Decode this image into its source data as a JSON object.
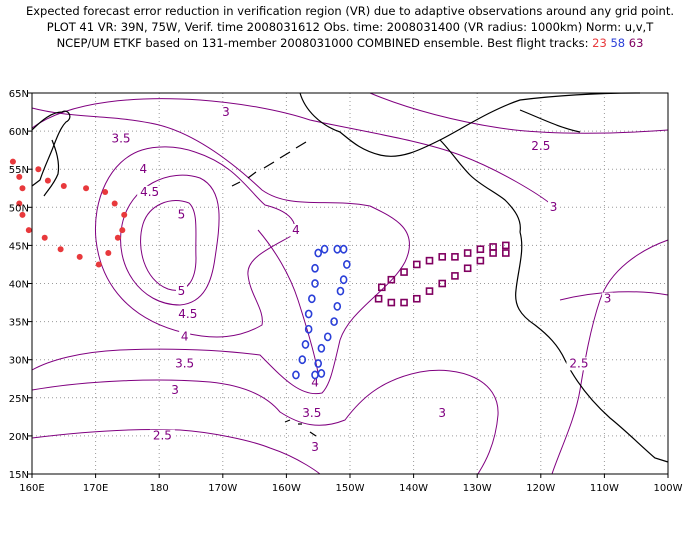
{
  "header": {
    "line1": "Expected forecast error reduction in verification region (VR) due to adaptive observations around any grid point.",
    "line2": "PLOT 41 VR: 39N, 75W, Verif. time 2008031612 Obs. time: 2008031400 (VR radius: 1000km) Norm: u,v,T",
    "line3_prefix": "NCEP/UM ETKF based on 131-member 2008031000 COMBINED ensemble.  Best flight tracks:",
    "track_a": "23",
    "track_b": "58",
    "track_c": "63"
  },
  "colors": {
    "contour": "#800080",
    "coast": "#000000",
    "grid": "#9a9a9a",
    "track_23": "#e8393c",
    "track_58": "#2a3fd8",
    "track_63": "#800060"
  },
  "chart_data": {
    "type": "map",
    "x_ticks": [
      "160E",
      "170E",
      "180",
      "170W",
      "160W",
      "150W",
      "140W",
      "130W",
      "120W",
      "110W",
      "100W"
    ],
    "y_ticks": [
      "15N",
      "20N",
      "25N",
      "30N",
      "35N",
      "40N",
      "45N",
      "50N",
      "55N",
      "60N",
      "65N"
    ],
    "lon_range": [
      160,
      260
    ],
    "lat_range": [
      15,
      65
    ],
    "contour_labels": [
      {
        "text": "3",
        "lon": 190.5,
        "lat": 62
      },
      {
        "text": "3.5",
        "lon": 174,
        "lat": 58.5
      },
      {
        "text": "2.5",
        "lon": 240,
        "lat": 57.5
      },
      {
        "text": "4",
        "lon": 177.5,
        "lat": 54.5
      },
      {
        "text": "4.5",
        "lon": 178.5,
        "lat": 51.5
      },
      {
        "text": "5",
        "lon": 183.5,
        "lat": 48.5
      },
      {
        "text": "3",
        "lon": 242,
        "lat": 49.5
      },
      {
        "text": "4",
        "lon": 201.5,
        "lat": 46.5
      },
      {
        "text": "5",
        "lon": 183.5,
        "lat": 38.5
      },
      {
        "text": "4.5",
        "lon": 184.5,
        "lat": 35.5
      },
      {
        "text": "3",
        "lon": 250.5,
        "lat": 37.5
      },
      {
        "text": "4",
        "lon": 184,
        "lat": 32.5
      },
      {
        "text": "3.5",
        "lon": 184,
        "lat": 29
      },
      {
        "text": "2.5",
        "lon": 246,
        "lat": 29
      },
      {
        "text": "4",
        "lon": 204.5,
        "lat": 26.5
      },
      {
        "text": "3",
        "lon": 182.5,
        "lat": 25.5
      },
      {
        "text": "3.5",
        "lon": 204,
        "lat": 22.5
      },
      {
        "text": "3",
        "lon": 224.5,
        "lat": 22.5
      },
      {
        "text": "2.5",
        "lon": 180.5,
        "lat": 19.5
      },
      {
        "text": "3",
        "lon": 204.5,
        "lat": 18
      }
    ],
    "tracks": [
      {
        "id": "23",
        "marker": "filled-circle",
        "points": [
          [
            171.5,
            52
          ],
          [
            173,
            50.5
          ],
          [
            174.5,
            49
          ],
          [
            173.5,
            46
          ],
          [
            174.2,
            47
          ],
          [
            172,
            44
          ],
          [
            170.5,
            42.5
          ],
          [
            167.5,
            43.5
          ],
          [
            164.5,
            44.5
          ],
          [
            162,
            46
          ],
          [
            159.5,
            47
          ],
          [
            158.5,
            49
          ],
          [
            158,
            50.5
          ],
          [
            158.5,
            52.5
          ],
          [
            158,
            54
          ],
          [
            157,
            56
          ],
          [
            168.5,
            52.5
          ],
          [
            165,
            52.8
          ],
          [
            162.5,
            53.5
          ],
          [
            161,
            55
          ]
        ]
      },
      {
        "id": "58",
        "marker": "open-circle",
        "points": [
          [
            201.5,
            28
          ],
          [
            202.5,
            30
          ],
          [
            203,
            32
          ],
          [
            203.5,
            34
          ],
          [
            203.5,
            36
          ],
          [
            204,
            38
          ],
          [
            204.5,
            40
          ],
          [
            204.5,
            42
          ],
          [
            205,
            44
          ],
          [
            206,
            44.5
          ],
          [
            208,
            44.5
          ],
          [
            209,
            44.5
          ],
          [
            209.5,
            42.5
          ],
          [
            209,
            40.5
          ],
          [
            208.5,
            39
          ],
          [
            208,
            37
          ],
          [
            207.5,
            35
          ],
          [
            206.5,
            33
          ],
          [
            205.5,
            31.5
          ],
          [
            205,
            29.5
          ],
          [
            204.5,
            28
          ],
          [
            205.5,
            28.2
          ]
        ]
      },
      {
        "id": "63",
        "marker": "open-square",
        "points": [
          [
            214.5,
            38
          ],
          [
            216.5,
            37.5
          ],
          [
            218.5,
            37.5
          ],
          [
            220.5,
            38
          ],
          [
            222.5,
            39
          ],
          [
            224.5,
            40
          ],
          [
            226.5,
            41
          ],
          [
            228.5,
            42
          ],
          [
            230.5,
            43
          ],
          [
            232.5,
            44
          ],
          [
            234.5,
            45
          ],
          [
            234.5,
            44
          ],
          [
            232.5,
            44.8
          ],
          [
            230.5,
            44.5
          ],
          [
            228.5,
            44
          ],
          [
            226.5,
            43.5
          ],
          [
            224.5,
            43.5
          ],
          [
            222.5,
            43
          ],
          [
            220.5,
            42.5
          ],
          [
            218.5,
            41.5
          ],
          [
            216.5,
            40.5
          ],
          [
            215,
            39.5
          ]
        ]
      }
    ]
  }
}
